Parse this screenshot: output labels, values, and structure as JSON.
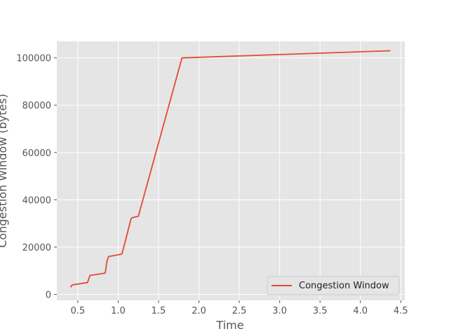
{
  "chart_data": {
    "type": "line",
    "title": "",
    "xlabel": "Time",
    "ylabel": "Congestion Window (bytes)",
    "xlim": [
      0.24,
      4.55
    ],
    "ylim": [
      -2500,
      107000
    ],
    "xticks": [
      0.5,
      1.0,
      1.5,
      2.0,
      2.5,
      3.0,
      3.5,
      4.0,
      4.5
    ],
    "xtick_labels": [
      "0.5",
      "1.0",
      "1.5",
      "2.0",
      "2.5",
      "3.0",
      "3.5",
      "4.0",
      "4.5"
    ],
    "yticks": [
      0,
      20000,
      40000,
      60000,
      80000,
      100000
    ],
    "ytick_labels": [
      "0",
      "20000",
      "40000",
      "60000",
      "80000",
      "100000"
    ],
    "grid": true,
    "legend_position": "lower-right",
    "series": [
      {
        "name": "Congestion Window",
        "color": "#e24a33",
        "x": [
          0.41,
          0.42,
          0.43,
          0.62,
          0.64,
          0.65,
          0.84,
          0.86,
          0.88,
          1.04,
          1.05,
          1.16,
          1.18,
          1.25,
          1.79,
          4.37
        ],
        "y": [
          3000,
          3500,
          4000,
          5000,
          7000,
          8000,
          9000,
          14000,
          16000,
          17000,
          17500,
          32000,
          32500,
          33000,
          100000,
          103000
        ]
      }
    ]
  }
}
